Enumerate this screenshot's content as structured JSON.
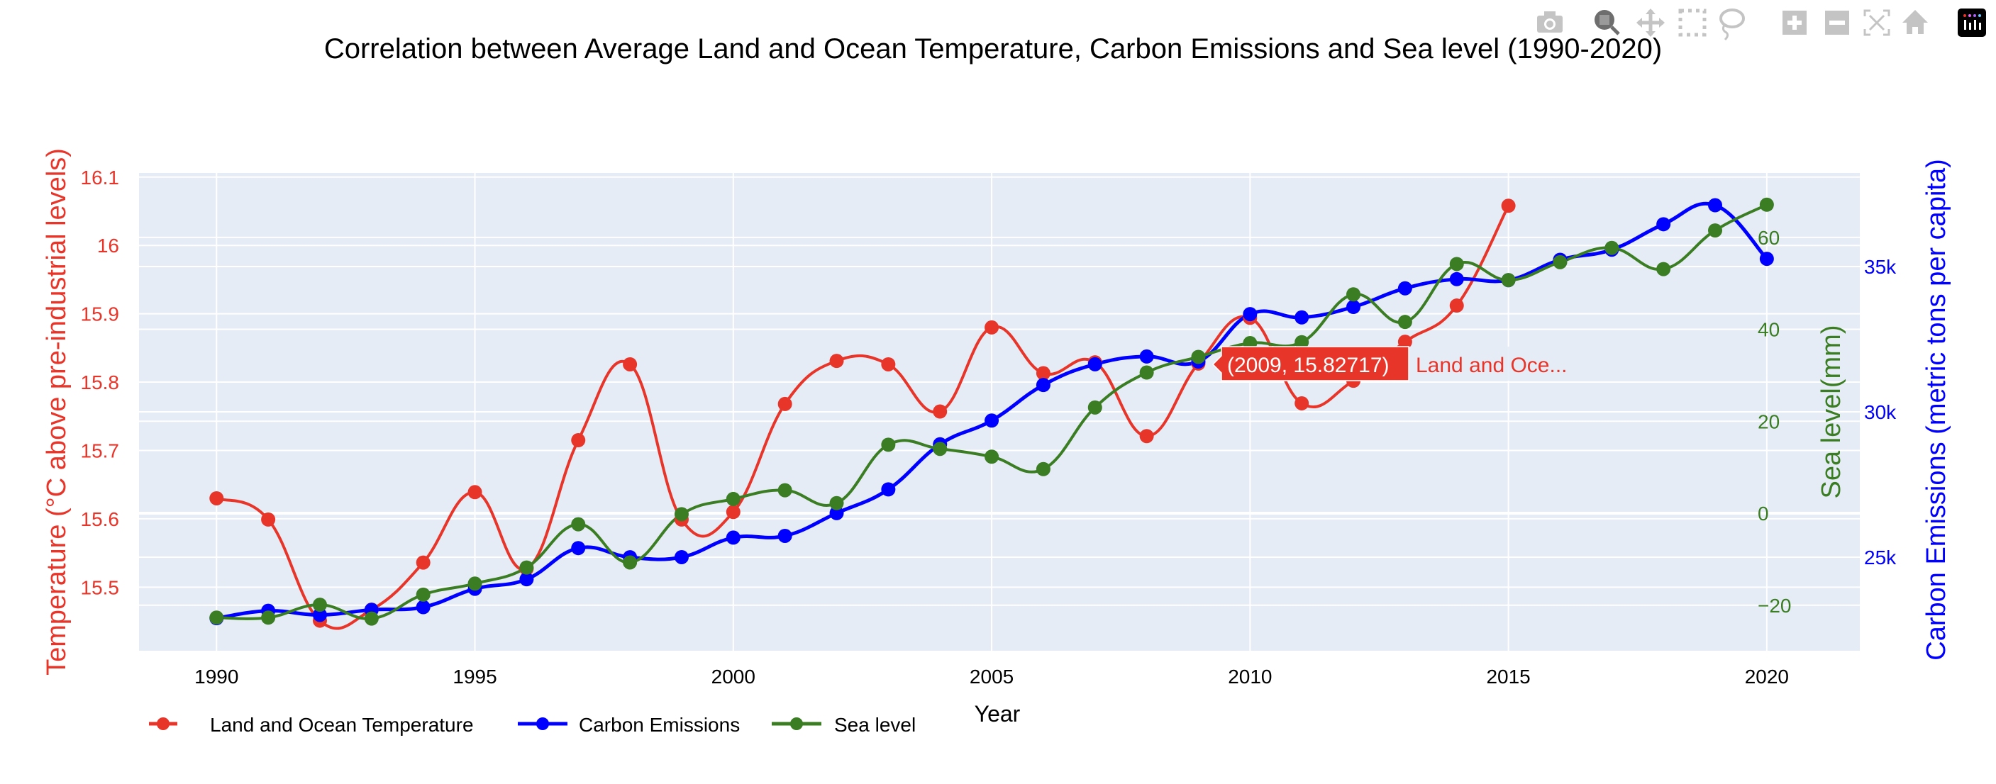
{
  "modebar": {
    "icons": [
      "camera-icon",
      "zoom-icon",
      "pan-icon",
      "box-select-icon",
      "lasso-select-icon",
      "zoom-in-icon",
      "zoom-out-icon",
      "autoscale-icon",
      "reset-axes-icon",
      "plotly-logo-icon"
    ],
    "active": "zoom-icon"
  },
  "chart_data": {
    "type": "line",
    "title": "Correlation between Average Land and Ocean Temperature, Carbon Emissions and Sea level (1990-2020)",
    "xlabel": "Year",
    "x": [
      1990,
      1991,
      1992,
      1993,
      1994,
      1995,
      1996,
      1997,
      1998,
      1999,
      2000,
      2001,
      2002,
      2003,
      2004,
      2005,
      2006,
      2007,
      2008,
      2009,
      2010,
      2011,
      2012,
      2013,
      2014,
      2015,
      2016,
      2017,
      2018,
      2019,
      2020
    ],
    "xlim": [
      1988.5,
      2021.8
    ],
    "xticks": [
      1990,
      1995,
      2000,
      2005,
      2010,
      2015,
      2020
    ],
    "grid": true,
    "legend": "bottom-left, horizontal",
    "axes": {
      "y": {
        "title": "Temperature (°C above pre-industrial levels)",
        "color": "#e8352a",
        "side": "left",
        "range": [
          15.407,
          16.106
        ],
        "ticks": [
          15.5,
          15.6,
          15.7,
          15.8,
          15.9,
          16,
          16.1
        ],
        "ticklabels": [
          "15.5",
          "15.6",
          "15.7",
          "15.8",
          "15.9",
          "16",
          "16.1"
        ]
      },
      "y2": {
        "title": "Sea level(mm)",
        "color": "#3a7d22",
        "side": "right",
        "range": [
          -29.9,
          74.0
        ],
        "ticks": [
          -20,
          0,
          20,
          40,
          60
        ],
        "ticklabels": [
          "−20",
          "0",
          "20",
          "40",
          "60"
        ]
      },
      "y3": {
        "title": "Carbon Emissions (metric tons per capita)",
        "color": "#0000ff",
        "side": "right",
        "range": [
          21780,
          38220
        ],
        "ticks": [
          25000,
          30000,
          35000
        ],
        "ticklabels": [
          "25k",
          "30k",
          "35k"
        ]
      }
    },
    "series": [
      {
        "name": "Land and Ocean Temperature",
        "axis": "y",
        "color": "#e8352a",
        "values": [
          15.63,
          15.599,
          15.451,
          15.467,
          15.536,
          15.639,
          15.527,
          15.715,
          15.826,
          15.599,
          15.61,
          15.768,
          15.831,
          15.826,
          15.757,
          15.88,
          15.813,
          15.829,
          15.721,
          15.82717,
          15.894,
          15.769,
          15.802,
          15.859,
          15.912,
          16.058,
          null,
          null,
          null,
          null,
          null
        ]
      },
      {
        "name": "Carbon Emissions",
        "axis": "y3",
        "color": "#0000ff",
        "values": [
          22898,
          23154,
          23012,
          23188,
          23280,
          23912,
          24239,
          25312,
          24997,
          25000,
          25673,
          25732,
          26515,
          27332,
          28883,
          29700,
          30924,
          31637,
          31905,
          31732,
          33363,
          33249,
          33610,
          34251,
          34566,
          34532,
          35232,
          35580,
          36456,
          37110,
          35266
        ]
      },
      {
        "name": "Sea level",
        "axis": "y2",
        "color": "#3a7d22",
        "values": [
          -22.7,
          -22.7,
          -19.9,
          -22.9,
          -17.7,
          -15.3,
          -11.8,
          -2.4,
          -10.7,
          -0.2,
          3.1,
          5.0,
          2.2,
          14.9,
          14.0,
          12.3,
          9.6,
          23.0,
          30.6,
          34.0,
          37.0,
          37.2,
          47.6,
          41.6,
          54.2,
          50.7,
          54.6,
          57.7,
          53.1,
          61.5,
          67.1
        ]
      }
    ],
    "hover": {
      "text": "(2009, 15.82717)",
      "series_label": "Land and Oce...",
      "x": 2009,
      "y": 15.82717
    }
  }
}
